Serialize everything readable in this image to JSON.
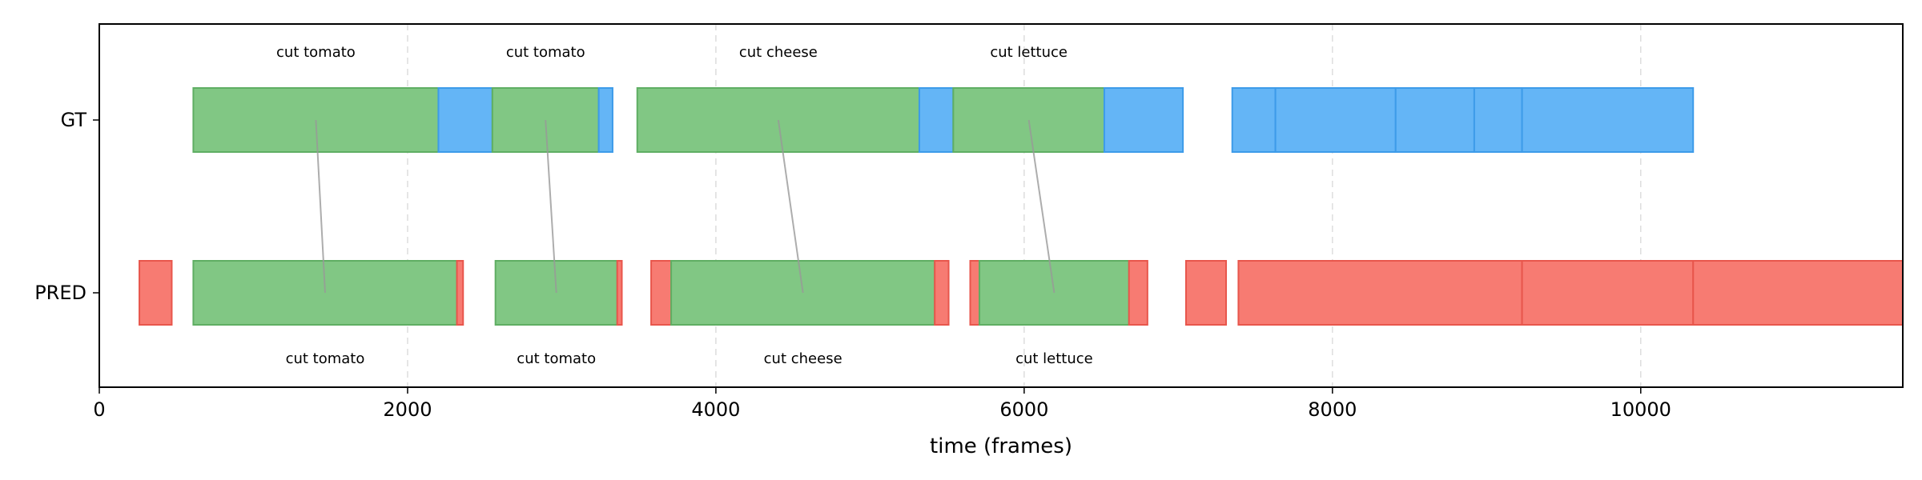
{
  "chart_data": {
    "type": "timeline",
    "xlabel": "time (frames)",
    "xlim": [
      0,
      11700
    ],
    "xticks": [
      0,
      2000,
      4000,
      6000,
      8000,
      10000
    ],
    "grid": "x-dashed",
    "rows": [
      "GT",
      "PRED"
    ],
    "colors": {
      "matched": "#81c784",
      "matched_edge": "#5fae63",
      "gt_unmatched": "#64b5f6",
      "gt_unmatched_edge": "#3d9be9",
      "pred_unmatched": "#f77b72",
      "pred_unmatched_edge": "#e8564c",
      "link": "#999999",
      "grid": "#dddddd"
    },
    "gt_segments": [
      {
        "start": 610,
        "end": 2200,
        "status": "matched",
        "label": "cut tomato"
      },
      {
        "start": 2200,
        "end": 2550,
        "status": "unmatched",
        "label": ""
      },
      {
        "start": 2550,
        "end": 3240,
        "status": "matched",
        "label": "cut tomato"
      },
      {
        "start": 3240,
        "end": 3330,
        "status": "unmatched",
        "label": ""
      },
      {
        "start": 3490,
        "end": 5320,
        "status": "matched",
        "label": "cut cheese"
      },
      {
        "start": 5320,
        "end": 5540,
        "status": "unmatched",
        "label": ""
      },
      {
        "start": 5540,
        "end": 6520,
        "status": "matched",
        "label": "cut lettuce"
      },
      {
        "start": 6520,
        "end": 7030,
        "status": "unmatched",
        "label": ""
      },
      {
        "start": 7350,
        "end": 7630,
        "status": "unmatched",
        "label": ""
      },
      {
        "start": 7630,
        "end": 8410,
        "status": "unmatched",
        "label": ""
      },
      {
        "start": 8410,
        "end": 8920,
        "status": "unmatched",
        "label": ""
      },
      {
        "start": 8920,
        "end": 9230,
        "status": "unmatched",
        "label": ""
      },
      {
        "start": 9230,
        "end": 10340,
        "status": "unmatched",
        "label": ""
      }
    ],
    "pred_segments": [
      {
        "start": 260,
        "end": 470,
        "status": "unmatched",
        "label": ""
      },
      {
        "start": 610,
        "end": 2320,
        "status": "matched",
        "label": "cut tomato"
      },
      {
        "start": 2320,
        "end": 2360,
        "status": "unmatched",
        "label": ""
      },
      {
        "start": 2570,
        "end": 3360,
        "status": "matched",
        "label": "cut tomato"
      },
      {
        "start": 3360,
        "end": 3390,
        "status": "unmatched",
        "label": ""
      },
      {
        "start": 3580,
        "end": 3710,
        "status": "unmatched",
        "label": ""
      },
      {
        "start": 3710,
        "end": 5420,
        "status": "matched",
        "label": "cut cheese"
      },
      {
        "start": 5420,
        "end": 5510,
        "status": "unmatched",
        "label": ""
      },
      {
        "start": 5650,
        "end": 5710,
        "status": "unmatched",
        "label": ""
      },
      {
        "start": 5710,
        "end": 6680,
        "status": "matched",
        "label": "cut lettuce"
      },
      {
        "start": 6680,
        "end": 6800,
        "status": "unmatched",
        "label": ""
      },
      {
        "start": 7050,
        "end": 7310,
        "status": "unmatched",
        "label": ""
      },
      {
        "start": 7390,
        "end": 9230,
        "status": "unmatched",
        "label": ""
      },
      {
        "start": 9230,
        "end": 10340,
        "status": "unmatched",
        "label": ""
      },
      {
        "start": 10340,
        "end": 11700,
        "status": "unmatched",
        "label": ""
      }
    ],
    "links": [
      {
        "gt_x": 1405,
        "pred_x": 1465
      },
      {
        "gt_x": 2895,
        "pred_x": 2965
      },
      {
        "gt_x": 4405,
        "pred_x": 4565
      },
      {
        "gt_x": 6030,
        "pred_x": 6195
      }
    ]
  }
}
